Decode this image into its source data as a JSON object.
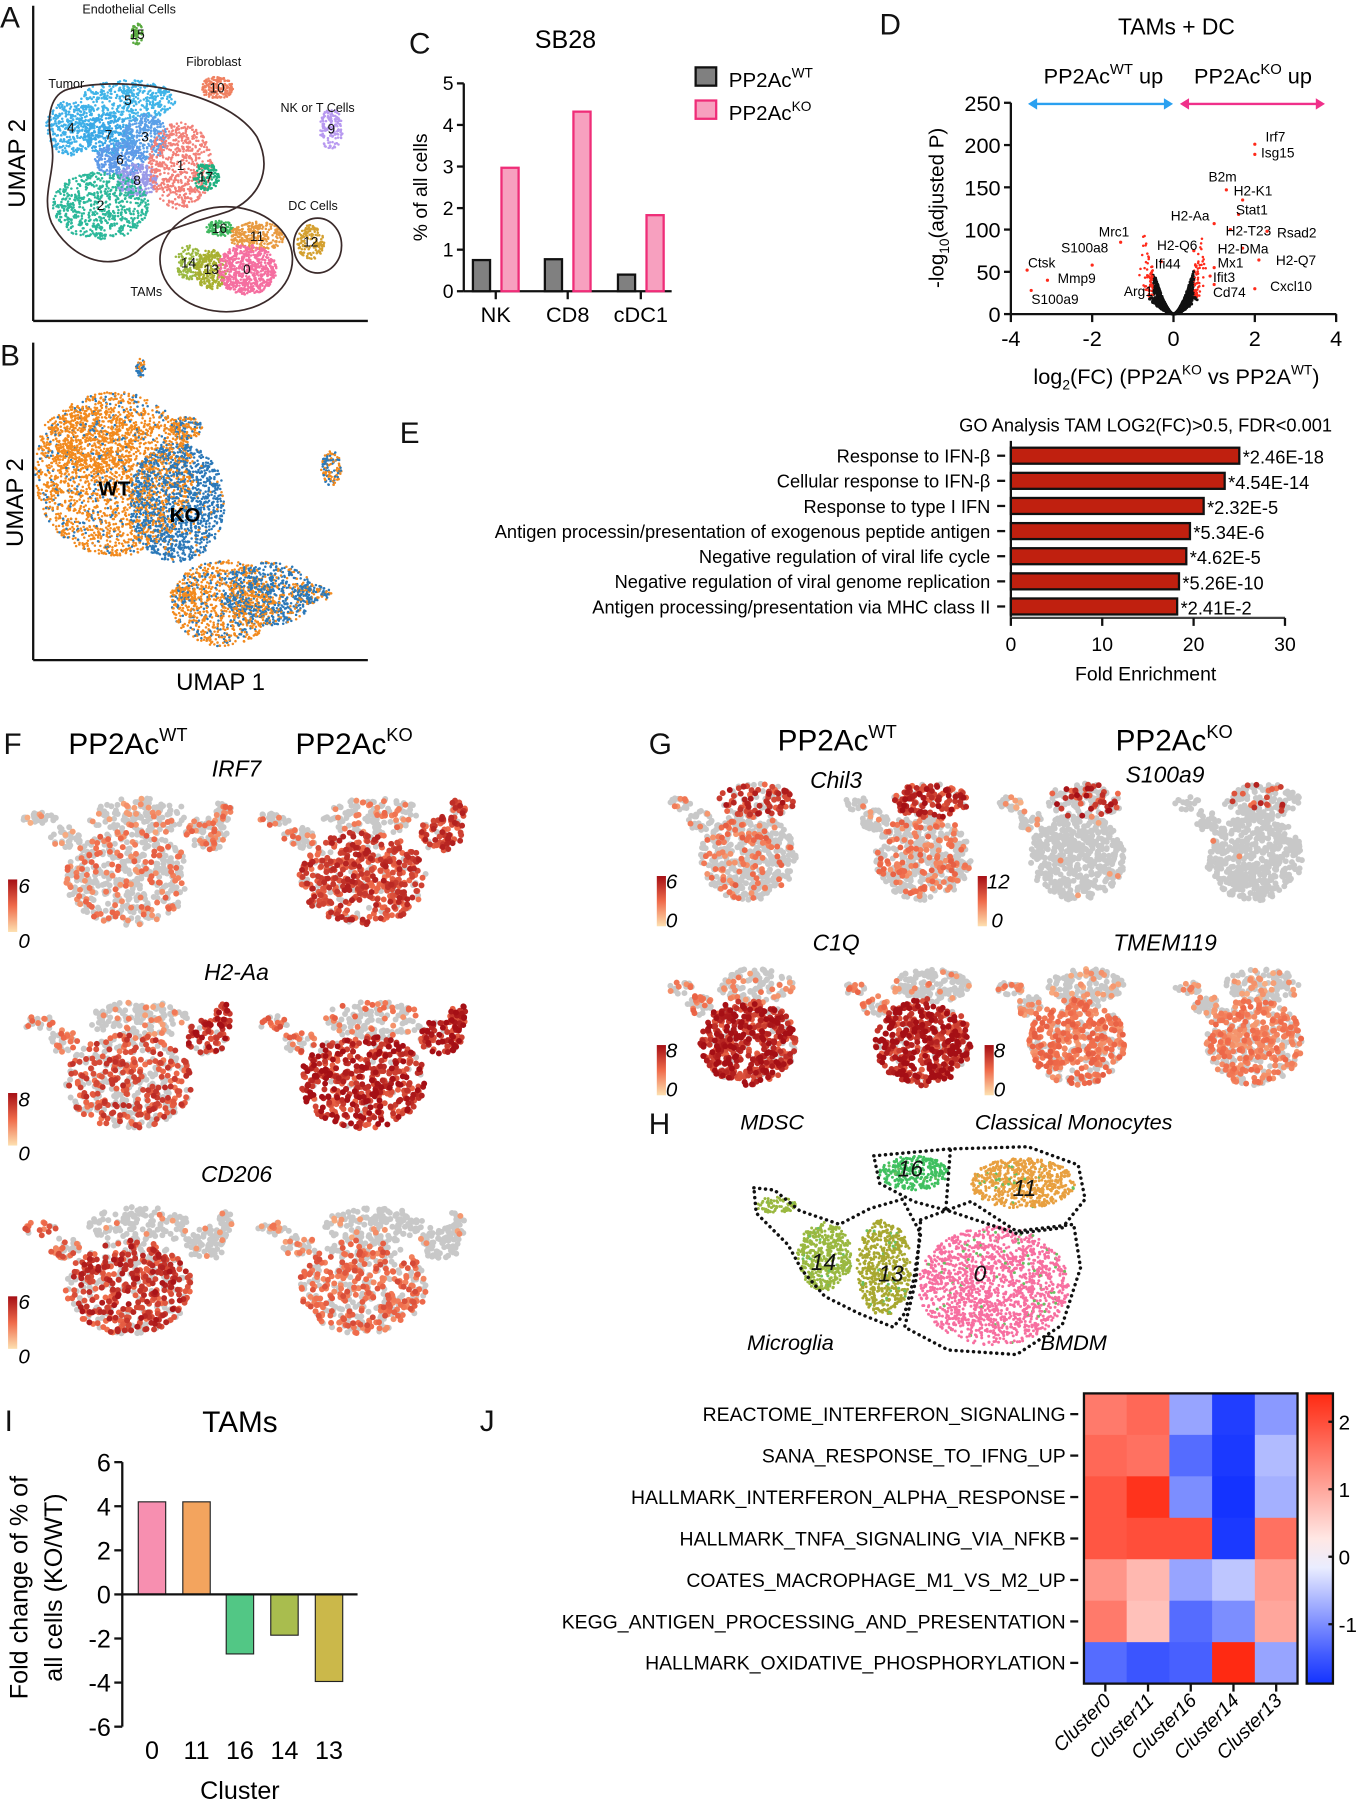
{
  "panel_a": {
    "letter": "A",
    "ylabel": "UMAP 2",
    "groups": {
      "endothelial": "Endothelial Cells",
      "fibroblast": "Fibroblast",
      "tumor": "Tumor",
      "nkt": "NK or T Cells",
      "dc": "DC Cells",
      "tams": "TAMs"
    },
    "cluster_labels": [
      "15",
      "10",
      "9",
      "5",
      "4",
      "7",
      "3",
      "6",
      "8",
      "1",
      "17",
      "2",
      "16",
      "11",
      "12",
      "14",
      "13",
      "0"
    ]
  },
  "panel_b": {
    "letter": "B",
    "ylabel": "UMAP 2",
    "xlabel": "UMAP 1",
    "wt": "WT",
    "ko": "KO",
    "colors": {
      "wt": "#f28a1e",
      "ko": "#2b78b8"
    }
  },
  "panel_c": {
    "letter": "C"
  },
  "panel_d": {
    "letter": "D"
  },
  "panel_e": {
    "letter": "E"
  },
  "legend": {
    "base": "PP2Ac",
    "wt": "WT",
    "ko": "KO"
  },
  "panel_f": {
    "letter": "F",
    "base": "PP2Ac",
    "wt": "WT",
    "ko": "KO",
    "genes": [
      "IRF7",
      "H2-Aa",
      "CD206"
    ],
    "scales": [
      {
        "max": "6",
        "min": "0"
      },
      {
        "max": "8",
        "min": "0"
      },
      {
        "max": "6",
        "min": "0"
      }
    ]
  },
  "panel_g": {
    "letter": "G",
    "base": "PP2Ac",
    "wt": "WT",
    "ko": "KO",
    "genes": [
      "Chil3",
      "S100a9",
      "C1Q",
      "TMEM119"
    ],
    "scales": [
      {
        "max": "6",
        "min": "0"
      },
      {
        "max": "12",
        "min": "0"
      },
      {
        "max": "8",
        "min": "0"
      },
      {
        "max": "8",
        "min": "0"
      }
    ]
  },
  "panel_h": {
    "letter": "H",
    "regions": {
      "mdsc": "MDSC",
      "classical": "Classical Monocytes",
      "microglia": "Microglia",
      "bmdm": "BMDM"
    },
    "clusters": [
      "16",
      "11",
      "14",
      "13",
      "0"
    ]
  },
  "panel_i": {
    "letter": "I"
  },
  "panel_j": {
    "letter": "J"
  },
  "chart_data": [
    {
      "type": "bar",
      "title": "SB28",
      "ylabel": "% of all cells",
      "categories": [
        "NK",
        "CD8",
        "cDC1"
      ],
      "series": [
        {
          "name": "PP2AcWT",
          "values": [
            0.75,
            0.77,
            0.4
          ],
          "color": "#808080",
          "stroke": "#111111"
        },
        {
          "name": "PP2AcKO",
          "values": [
            2.97,
            4.32,
            1.83
          ],
          "color": "#f7a0bf",
          "stroke": "#ef2d78"
        }
      ],
      "ylim": [
        0,
        5
      ],
      "yticks": [
        "0",
        "1",
        "2",
        "3",
        "4",
        "5"
      ],
      "legend": "right"
    },
    {
      "type": "scatter",
      "title": "TAMs + DC",
      "xlabel_parts": [
        "log",
        "2",
        "(FC) (PP2A",
        "KO",
        " vs PP2A",
        "WT",
        ")"
      ],
      "ylabel_parts": [
        "-log",
        "10",
        "(adjusted P)"
      ],
      "xlim": [
        -4,
        4
      ],
      "ylim": [
        0,
        250
      ],
      "xticks": [
        "-4",
        "-2",
        "0",
        "2",
        "4"
      ],
      "yticks": [
        "0",
        "50",
        "100",
        "150",
        "200",
        "250"
      ],
      "arrows": {
        "left_base": "PP2Ac",
        "left_sup": "WT",
        "left_suffix": " up",
        "right_base": "PP2Ac",
        "right_sup": "KO",
        "right_suffix": " up",
        "left_color": "#2aa0f0",
        "right_color": "#f0308a"
      },
      "significant_color": "#ff2a1a",
      "labeled_genes": [
        {
          "gene": "Irf7",
          "x": 2.0,
          "y": 201
        },
        {
          "gene": "Isg15",
          "x": 2.0,
          "y": 189
        },
        {
          "gene": "B2m",
          "x": 1.3,
          "y": 147
        },
        {
          "gene": "H2-K1",
          "x": 1.7,
          "y": 135
        },
        {
          "gene": "Stat1",
          "x": 1.6,
          "y": 118
        },
        {
          "gene": "H2-Aa",
          "x": 1.0,
          "y": 107
        },
        {
          "gene": "H2-T23",
          "x": 1.4,
          "y": 100
        },
        {
          "gene": "Rsad2",
          "x": 2.3,
          "y": 98
        },
        {
          "gene": "Mrc1",
          "x": -1.3,
          "y": 85
        },
        {
          "gene": "H2-Q6",
          "x": 0.5,
          "y": 75
        },
        {
          "gene": "H2-DMa",
          "x": 1.7,
          "y": 78
        },
        {
          "gene": "H2-Q7",
          "x": 2.1,
          "y": 64
        },
        {
          "gene": "Ifi44",
          "x": -0.3,
          "y": 62
        },
        {
          "gene": "Mx1",
          "x": 1.0,
          "y": 55
        },
        {
          "gene": "S100a8",
          "x": -2.0,
          "y": 58
        },
        {
          "gene": "Ctsk",
          "x": -3.6,
          "y": 52
        },
        {
          "gene": "Mmp9",
          "x": -3.1,
          "y": 40
        },
        {
          "gene": "Ifit3",
          "x": 0.9,
          "y": 45
        },
        {
          "gene": "Cd74",
          "x": 1.0,
          "y": 35
        },
        {
          "gene": "Cxcl10",
          "x": 2.0,
          "y": 30
        },
        {
          "gene": "S100a9",
          "x": -3.5,
          "y": 28
        },
        {
          "gene": "Arg1",
          "x": -0.6,
          "y": 28
        }
      ]
    },
    {
      "type": "bar",
      "orientation": "horizontal",
      "title": "GO Analysis TAM LOG2(FC)>0.5, FDR<0.001",
      "xlabel": "Fold Enrichment",
      "categories": [
        "Response to IFN-β",
        "Cellular response to IFN-β",
        "Response to type I IFN",
        "Antigen processin/presentation of exogenous peptide antigen",
        "Negative regulation of viral life cycle",
        "Negative regulation of viral genome replication",
        "Antigen processing/presentation via MHC class II"
      ],
      "values": [
        25.0,
        23.4,
        21.1,
        19.6,
        19.2,
        18.4,
        18.2
      ],
      "annotations": [
        "*2.46E-18",
        "*4.54E-14",
        "*2.32E-5",
        "*5.34E-6",
        "*4.62E-5",
        "*5.26E-10",
        "*2.41E-2"
      ],
      "color": "#c0200f",
      "xlim": [
        0,
        30
      ],
      "xticks": [
        "0",
        "10",
        "20",
        "30"
      ]
    },
    {
      "type": "bar",
      "title": "TAMs",
      "xlabel": "Cluster",
      "ylabel_lines": [
        "Fold change of % of",
        "all cells (KO/WT)"
      ],
      "categories": [
        "0",
        "11",
        "16",
        "14",
        "13"
      ],
      "values": [
        4.2,
        4.2,
        -2.7,
        -1.85,
        -3.95
      ],
      "colors": [
        "#f78fb0",
        "#f3a45e",
        "#52c785",
        "#a9bd4e",
        "#cbb84a"
      ],
      "ylim": [
        -6,
        6
      ],
      "yticks": [
        "-6",
        "-4",
        "-2",
        "0",
        "2",
        "4",
        "6"
      ]
    },
    {
      "type": "heatmap",
      "rows": [
        "REACTOME_INTERFERON_SIGNALING",
        "SANA_RESPONSE_TO_IFNG_UP",
        "HALLMARK_INTERFERON_ALPHA_RESPONSE",
        "HALLMARK_TNFA_SIGNALING_VIA_NFKB",
        "COATES_MACROPHAGE_M1_VS_M2_UP",
        "KEGG_ANTIGEN_PROCESSING_AND_PRESENTATION",
        "HALLMARK_OXIDATIVE_PHOSPHORYLATION"
      ],
      "columns": [
        "Cluster0",
        "Cluster11",
        "Cluster16",
        "Cluster14",
        "Cluster13"
      ],
      "values": [
        [
          1.5,
          1.7,
          -0.8,
          -1.7,
          -0.9
        ],
        [
          1.7,
          1.6,
          -1.3,
          -1.75,
          -0.6
        ],
        [
          1.9,
          2.3,
          -1.0,
          -1.8,
          -0.7
        ],
        [
          1.9,
          2.0,
          2.0,
          -1.75,
          1.6
        ],
        [
          1.2,
          0.8,
          -0.8,
          -0.5,
          1.1
        ],
        [
          1.5,
          0.7,
          -1.3,
          -1.0,
          1.0
        ],
        [
          -1.3,
          -1.5,
          -1.4,
          2.4,
          -0.8
        ]
      ],
      "colorbar_ticks": [
        "2",
        "1",
        "0",
        "-1"
      ],
      "colorbar_range": [
        -1.88,
        2.42
      ],
      "high_color": "#ff2a12",
      "low_color": "#1433ff"
    }
  ]
}
